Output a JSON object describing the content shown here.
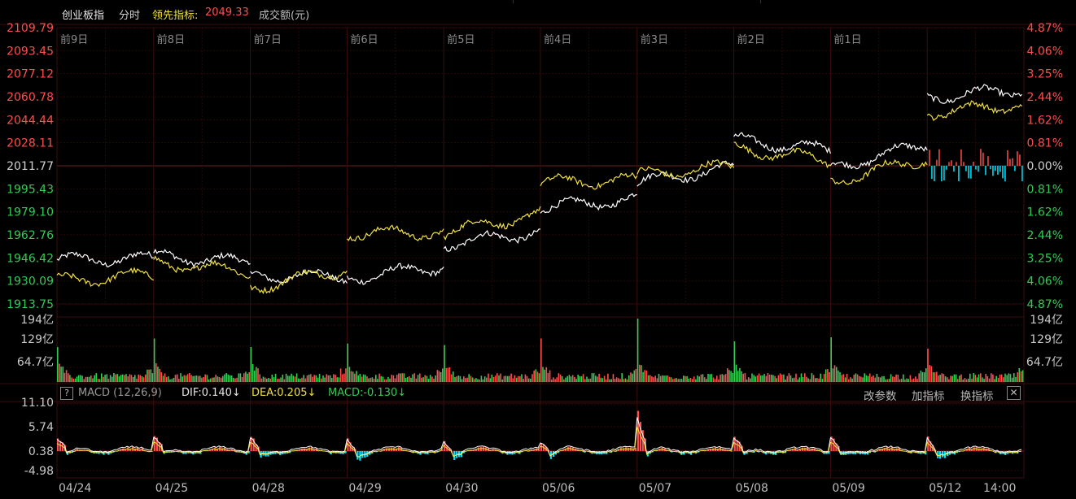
{
  "header": {
    "index_name": "创业板指",
    "mode": "分时",
    "lead_label": "领先指标:",
    "lead_value": "2049.33",
    "volume_label": "成交额(元)"
  },
  "colors": {
    "up": "#ff4d4d",
    "down": "#33cc55",
    "price_line": "#ffffff",
    "lead_line": "#f0e040",
    "macd_neg": "#00e5ff",
    "grid": "#2b0808"
  },
  "price_axis": {
    "left_labels": [
      "2109.79",
      "2093.45",
      "2077.12",
      "2060.78",
      "2044.44",
      "2028.11",
      "2011.77",
      "1995.43",
      "1979.10",
      "1962.76",
      "1946.42",
      "1930.09",
      "1913.75"
    ],
    "right_labels": [
      "4.87%",
      "4.06%",
      "3.25%",
      "2.44%",
      "1.62%",
      "0.81%",
      "0.00%",
      "0.81%",
      "1.62%",
      "2.44%",
      "3.25%",
      "4.06%",
      "4.87%"
    ]
  },
  "day_labels": [
    "前9日",
    "前8日",
    "前7日",
    "前6日",
    "前5日",
    "前4日",
    "前3日",
    "前2日",
    "前1日",
    ""
  ],
  "volume_axis": {
    "left_labels": [
      "194亿",
      "129亿",
      "64.7亿"
    ],
    "right_labels": [
      "194亿",
      "129亿",
      "64.7亿"
    ]
  },
  "macd_header": {
    "help_icon": "?",
    "name": "MACD (12,26,9)",
    "dif": "DIF:0.140↓",
    "dea": "DEA:0.205↓",
    "macd": "MACD:-0.130↓",
    "buttons": [
      "改参数",
      "加指标",
      "换指标"
    ],
    "close_icon": "✕"
  },
  "macd_axis": [
    "11.10",
    "5.74",
    "0.38",
    "-4.98"
  ],
  "date_labels": [
    "04/24",
    "04/25",
    "04/28",
    "04/29",
    "04/30",
    "05/06",
    "05/07",
    "05/08",
    "05/09",
    "05/12",
    "14:00"
  ],
  "chart_data": {
    "type": "line",
    "x": [
      "前9日",
      "前8日",
      "前7日",
      "前6日",
      "前5日",
      "前4日",
      "前3日",
      "前2日",
      "前1日",
      "05/12"
    ],
    "ylim": [
      1913.75,
      2109.79
    ],
    "series": [
      {
        "name": "创业板指",
        "values": [
          1945,
          1948,
          1934,
          1932,
          1956,
          1982,
          2000,
          2030,
          2010,
          2060
        ]
      },
      {
        "name": "领先指标",
        "values": [
          1930,
          1943,
          1925,
          1964,
          1965,
          2000,
          2005,
          2024,
          2000,
          2049.33
        ]
      }
    ]
  }
}
